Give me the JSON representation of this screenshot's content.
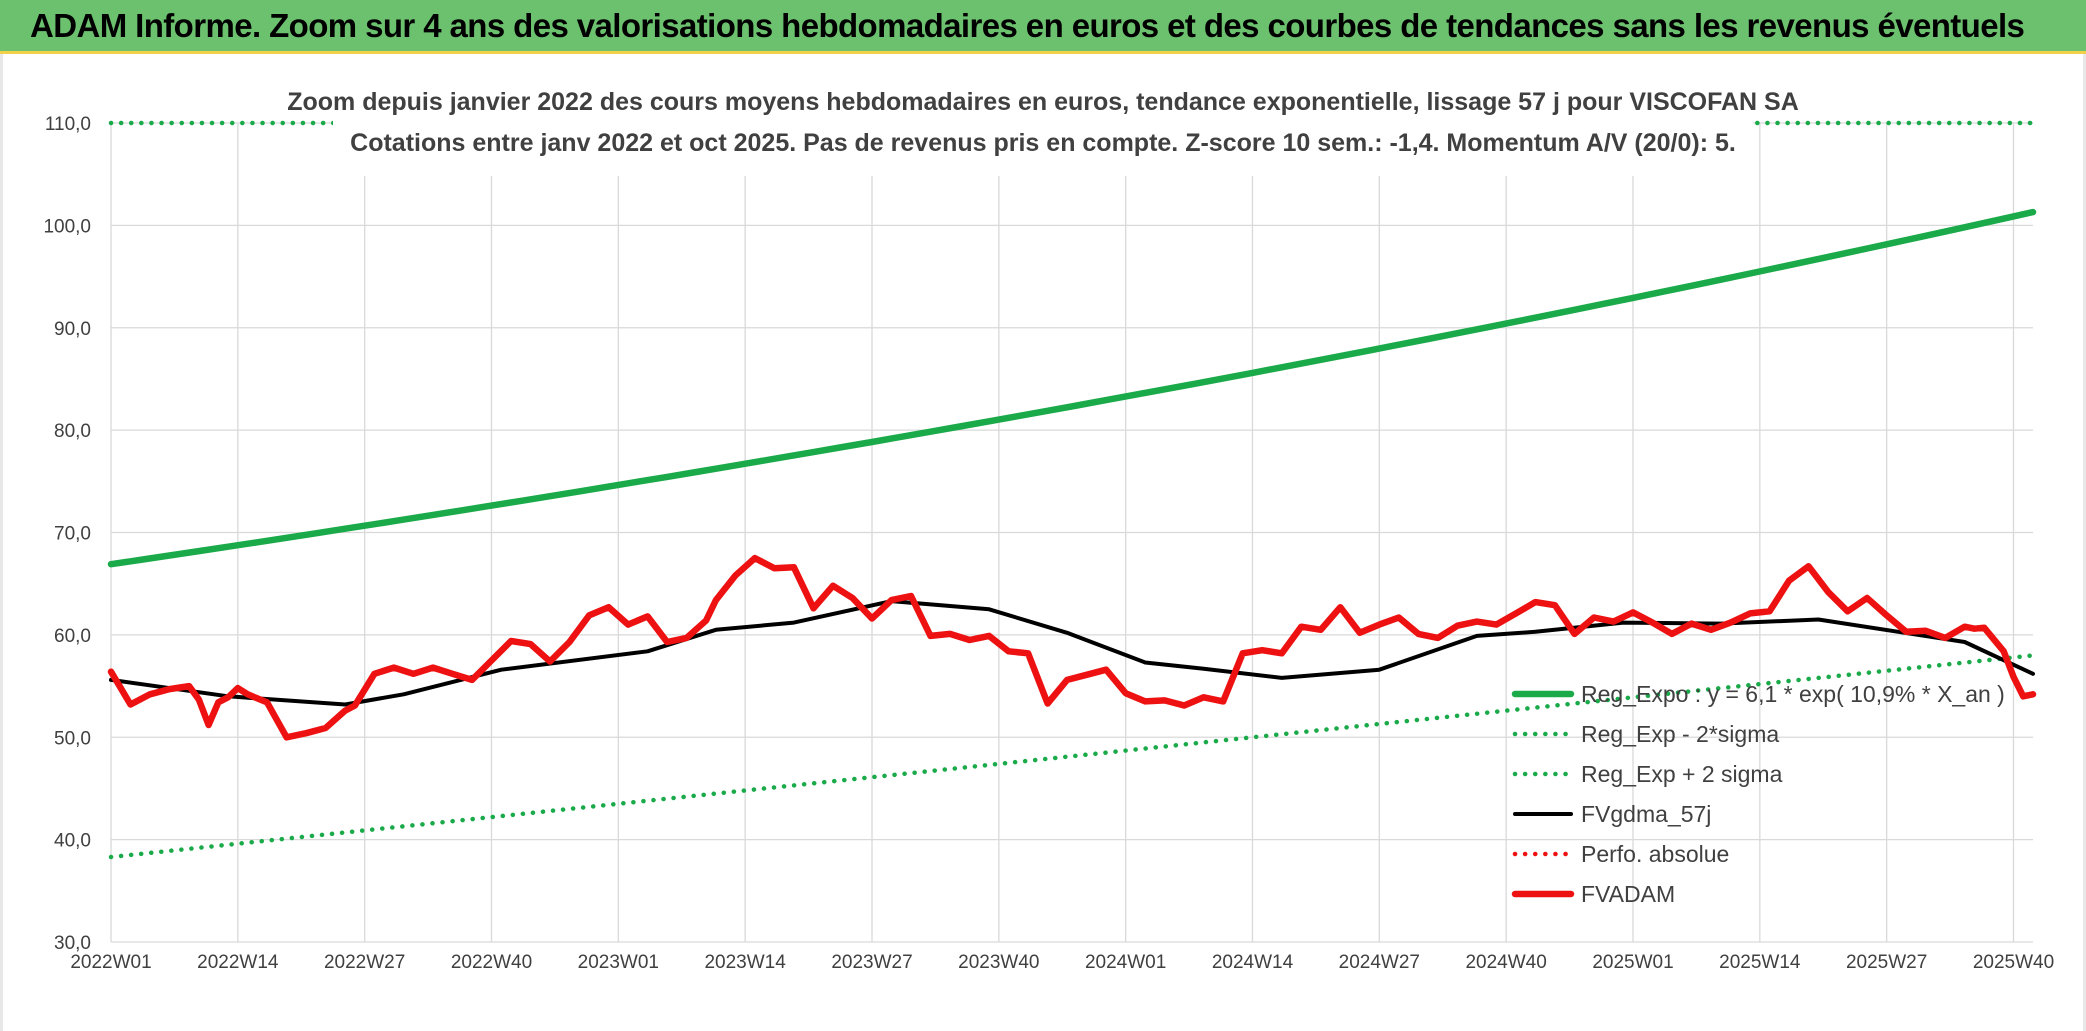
{
  "banner": {
    "title": "ADAM Informe. Zoom sur 4 ans des valorisations hebdomadaires en euros et des courbes de tendances sans les revenus éventuels"
  },
  "colors": {
    "banner_bg": "#6cc16f",
    "green": "#1aaa4a",
    "black": "#000000",
    "red": "#ee1111",
    "grid": "#d9d9d9",
    "text": "#404040"
  },
  "chart_data": {
    "type": "line",
    "title_line1": "Zoom depuis janvier 2022 des cours moyens hebdomadaires en euros, tendance exponentielle, lissage 57 j pour VISCOFAN SA",
    "title_line2": "Cotations entre janv 2022 et oct 2025. Pas de revenus pris en compte. Z-score 10 sem.: -1,4. Momentum A/V (20/0): 5.",
    "xlabel": "",
    "ylabel": "",
    "ylim": [
      30,
      110
    ],
    "yticks": [
      "30,0",
      "40,0",
      "50,0",
      "60,0",
      "70,0",
      "80,0",
      "90,0",
      "100,0",
      "110,0"
    ],
    "x_tick_labels": [
      "2022W01",
      "2022W14",
      "2022W27",
      "2022W40",
      "2023W01",
      "2023W14",
      "2023W27",
      "2023W40",
      "2024W01",
      "2024W14",
      "2024W27",
      "2024W40",
      "2025W01",
      "2025W14",
      "2025W27",
      "2025W40"
    ],
    "week_count": 198,
    "legend_position": "bottom-right",
    "series": [
      {
        "name": "Reg_Expo : y = 6,1 * exp( 10,9% *  X_an )",
        "style": "solid-thick",
        "color": "#1aaa4a",
        "x": [
          0,
          197
        ],
        "values": [
          66.9,
          101.3
        ]
      },
      {
        "name": "Reg_Exp - 2*sigma",
        "style": "dotted",
        "color": "#1aaa4a",
        "x": [
          0,
          197
        ],
        "values": [
          38.3,
          58.0
        ]
      },
      {
        "name": "Reg_Exp + 2 sigma",
        "style": "dotted",
        "color": "#1aaa4a",
        "x": [
          0,
          197
        ],
        "values": [
          110.0,
          110.0
        ]
      },
      {
        "name": "FVgdma_57j",
        "style": "solid",
        "color": "#000000",
        "x": [
          0,
          12,
          24,
          30,
          40,
          55,
          62,
          70,
          80,
          90,
          98,
          106,
          112,
          120,
          130,
          140,
          146,
          155,
          165,
          175,
          190,
          197
        ],
        "values": [
          55.6,
          54.0,
          53.2,
          54.2,
          56.6,
          58.4,
          60.5,
          61.2,
          63.3,
          62.5,
          60.2,
          57.3,
          56.7,
          55.8,
          56.6,
          59.9,
          60.3,
          61.2,
          61.1,
          61.5,
          59.3,
          56.2
        ]
      },
      {
        "name": "Perfo. absolue",
        "style": "dotted",
        "color": "#ee1111",
        "x": [],
        "values": []
      },
      {
        "name": "FVADAM",
        "style": "solid-thick",
        "color": "#ee1111",
        "x": [
          0,
          2,
          4,
          6,
          8,
          9,
          10,
          11,
          12,
          13,
          14,
          16,
          18,
          20,
          22,
          24,
          25,
          27,
          29,
          31,
          33,
          35,
          37,
          39,
          41,
          43,
          45,
          47,
          49,
          51,
          53,
          55,
          57,
          59,
          61,
          62,
          64,
          66,
          68,
          70,
          72,
          74,
          76,
          78,
          80,
          82,
          84,
          86,
          88,
          90,
          92,
          94,
          96,
          98,
          100,
          102,
          104,
          106,
          108,
          110,
          112,
          114,
          116,
          118,
          120,
          122,
          124,
          126,
          128,
          130,
          132,
          134,
          136,
          138,
          140,
          142,
          144,
          146,
          148,
          150,
          152,
          154,
          156,
          158,
          160,
          162,
          164,
          166,
          168,
          170,
          172,
          174,
          176,
          178,
          180,
          182,
          184,
          186,
          188,
          190,
          191,
          192,
          194,
          195,
          196,
          197
        ],
        "values": [
          56.4,
          53.2,
          54.2,
          54.7,
          55.0,
          53.7,
          51.2,
          53.4,
          53.9,
          54.8,
          54.2,
          53.4,
          50.0,
          50.4,
          50.9,
          52.6,
          53.1,
          56.2,
          56.8,
          56.2,
          56.8,
          56.2,
          55.6,
          57.5,
          59.4,
          59.1,
          57.4,
          59.3,
          61.9,
          62.7,
          61.0,
          61.8,
          59.3,
          59.7,
          61.4,
          63.4,
          65.8,
          67.5,
          66.5,
          66.6,
          62.6,
          64.8,
          63.6,
          61.6,
          63.4,
          63.8,
          59.9,
          60.1,
          59.5,
          59.9,
          58.4,
          58.2,
          53.3,
          55.6,
          56.1,
          56.6,
          54.3,
          53.5,
          53.6,
          53.1,
          53.9,
          53.5,
          58.2,
          58.5,
          58.2,
          60.8,
          60.5,
          62.7,
          60.2,
          61.0,
          61.7,
          60.1,
          59.7,
          60.9,
          61.3,
          61.0,
          62.1,
          63.2,
          62.9,
          60.1,
          61.7,
          61.3,
          62.2,
          61.2,
          60.1,
          61.1,
          60.5,
          61.2,
          62.1,
          62.3,
          65.3,
          66.7,
          64.2,
          62.3,
          63.6,
          61.9,
          60.3,
          60.4,
          59.7,
          60.8,
          60.6,
          60.7,
          58.4,
          55.9,
          54.0,
          54.2
        ]
      }
    ]
  }
}
